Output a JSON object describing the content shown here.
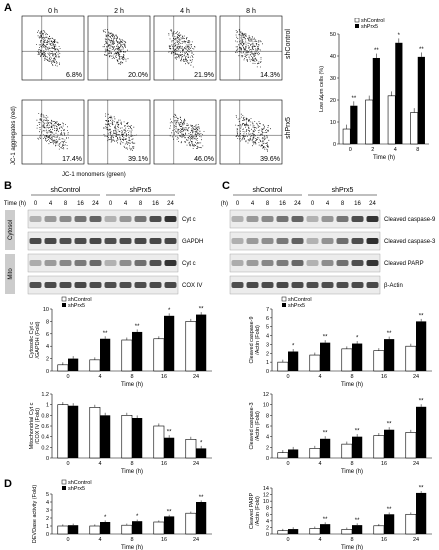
{
  "panels": {
    "a": "A",
    "b": "B",
    "c": "C",
    "d": "D"
  },
  "flow": {
    "times": [
      "0 h",
      "2 h",
      "4 h",
      "8 h"
    ],
    "row_labels": [
      "shControl",
      "shPrx5"
    ],
    "y_axis": "JC-1 aggregates (red)",
    "x_axis": "JC-1 monomers (green)",
    "percent": [
      [
        "6.8%",
        "20.0%",
        "21.9%",
        "14.3%"
      ],
      [
        "17.4%",
        "39.1%",
        "46.0%",
        "39.6%"
      ]
    ]
  },
  "blot_b": {
    "group_labels": [
      "shControl",
      "shPrx5"
    ],
    "time_label": "Time (h)",
    "lanes": [
      "0",
      "4",
      "8",
      "16",
      "24",
      "0",
      "4",
      "8",
      "16",
      "24"
    ],
    "side_labels": [
      "Cytosol",
      "Mito"
    ],
    "bands": [
      "Cyt c",
      "GAPDH",
      "Cyt c",
      "COX IV"
    ]
  },
  "blot_c": {
    "group_labels": [
      "shControl",
      "shPrx5"
    ],
    "time_label": "Time (h)",
    "lanes": [
      "0",
      "4",
      "8",
      "16",
      "24",
      "0",
      "4",
      "8",
      "16",
      "24"
    ],
    "bands": [
      "Cleaved caspase-9",
      "Cleaved caspase-3",
      "Cleaved PARP",
      "β-Actin"
    ]
  },
  "legend": {
    "control": "shControl",
    "prx5": "shPrx5"
  },
  "chart_data": [
    {
      "type": "bar",
      "id": "a",
      "categories": [
        "0",
        "2",
        "4",
        "8"
      ],
      "series": [
        {
          "name": "shControl",
          "values": [
            6.8,
            20.0,
            21.9,
            14.3
          ]
        },
        {
          "name": "shPrx5",
          "values": [
            17.4,
            39.1,
            46.0,
            39.6
          ]
        }
      ],
      "ylabel": "Low ∆ψm cells (%)",
      "xlabel": "Time (h)",
      "ylim": [
        0,
        50
      ],
      "yticks": [
        "0",
        "10",
        "20",
        "30",
        "40",
        "50"
      ],
      "stars": [
        "**",
        "**",
        "*",
        "**"
      ]
    },
    {
      "type": "bar",
      "id": "b1",
      "categories": [
        "0",
        "4",
        "8",
        "16",
        "24"
      ],
      "series": [
        {
          "name": "shControl",
          "values": [
            1.0,
            1.8,
            5.0,
            5.2,
            8.0
          ]
        },
        {
          "name": "shPrx5",
          "values": [
            2.0,
            5.2,
            6.3,
            8.9,
            9.1
          ]
        }
      ],
      "ylabel": "Cytosolic Cyt c /GAPDH (Fold)",
      "xlabel": "Time (h)",
      "ylim": [
        0,
        10
      ],
      "yticks": [
        "0",
        "2",
        "4",
        "6",
        "8",
        "10"
      ],
      "stars": [
        "",
        "**",
        "**",
        "*",
        "**"
      ]
    },
    {
      "type": "bar",
      "id": "b2",
      "categories": [
        "0",
        "4",
        "8",
        "16",
        "24"
      ],
      "series": [
        {
          "name": "shControl",
          "values": [
            1.0,
            0.95,
            0.8,
            0.6,
            0.35
          ]
        },
        {
          "name": "shPrx5",
          "values": [
            0.98,
            0.8,
            0.75,
            0.38,
            0.18
          ]
        }
      ],
      "ylabel": "Mitochondrial Cyt c /COX IV (Fold)",
      "xlabel": "Time (h)",
      "ylim": [
        0,
        1.2
      ],
      "yticks": [
        "0",
        "0.2",
        "0.4",
        "0.6",
        "0.8",
        "1",
        "1.2"
      ],
      "stars": [
        "",
        "",
        "",
        "**",
        "*"
      ]
    },
    {
      "type": "bar",
      "id": "c1",
      "categories": [
        "0",
        "4",
        "8",
        "16",
        "24"
      ],
      "series": [
        {
          "name": "shControl",
          "values": [
            1.0,
            1.8,
            2.5,
            2.3,
            2.8
          ]
        },
        {
          "name": "shPrx5",
          "values": [
            2.2,
            3.2,
            3.1,
            3.6,
            5.6
          ]
        }
      ],
      "ylabel": "Cleaved caspase-9 /Actin (Fold)",
      "xlabel": "Time (h)",
      "ylim": [
        0,
        7
      ],
      "yticks": [
        "0",
        "1",
        "2",
        "3",
        "4",
        "5",
        "6",
        "7"
      ],
      "stars": [
        "*",
        "**",
        "*",
        "**",
        "**"
      ]
    },
    {
      "type": "bar",
      "id": "c2",
      "categories": [
        "0",
        "4",
        "8",
        "16",
        "24"
      ],
      "series": [
        {
          "name": "shControl",
          "values": [
            1.0,
            1.8,
            2.6,
            4.2,
            4.8
          ]
        },
        {
          "name": "shPrx5",
          "values": [
            1.6,
            3.6,
            4.0,
            5.3,
            9.6
          ]
        }
      ],
      "ylabel": "Cleaved caspase-3 /Actin (Fold)",
      "xlabel": "Time (h)",
      "ylim": [
        0,
        12
      ],
      "yticks": [
        "0",
        "2",
        "4",
        "6",
        "8",
        "10",
        "12"
      ],
      "stars": [
        "",
        "**",
        "**",
        "**",
        "**"
      ]
    },
    {
      "type": "bar",
      "id": "d1",
      "categories": [
        "0",
        "4",
        "8",
        "16",
        "24"
      ],
      "series": [
        {
          "name": "shControl",
          "values": [
            1.0,
            1.0,
            1.1,
            1.5,
            2.6
          ]
        },
        {
          "name": "shPrx5",
          "values": [
            1.1,
            1.5,
            1.6,
            2.2,
            4.0
          ]
        }
      ],
      "ylabel": "DEVDase activity (Fold)",
      "xlabel": "Time (h)",
      "ylim": [
        0,
        5
      ],
      "yticks": [
        "0",
        "1",
        "2",
        "3",
        "4",
        "5"
      ],
      "stars": [
        "",
        "*",
        "*",
        "**",
        "**"
      ]
    },
    {
      "type": "bar",
      "id": "d2",
      "categories": [
        "0",
        "4",
        "8",
        "16",
        "24"
      ],
      "series": [
        {
          "name": "shControl",
          "values": [
            1.0,
            1.7,
            1.4,
            2.5,
            6.0
          ]
        },
        {
          "name": "shPrx5",
          "values": [
            1.5,
            3.0,
            2.7,
            6.0,
            12.5
          ]
        }
      ],
      "ylabel": "Cleaved PARP /Actin (Fold)",
      "xlabel": "Time (h)",
      "ylim": [
        0,
        14
      ],
      "yticks": [
        "0",
        "2",
        "4",
        "6",
        "8",
        "10",
        "12",
        "14"
      ],
      "stars": [
        "",
        "**",
        "**",
        "**",
        "**"
      ]
    }
  ]
}
